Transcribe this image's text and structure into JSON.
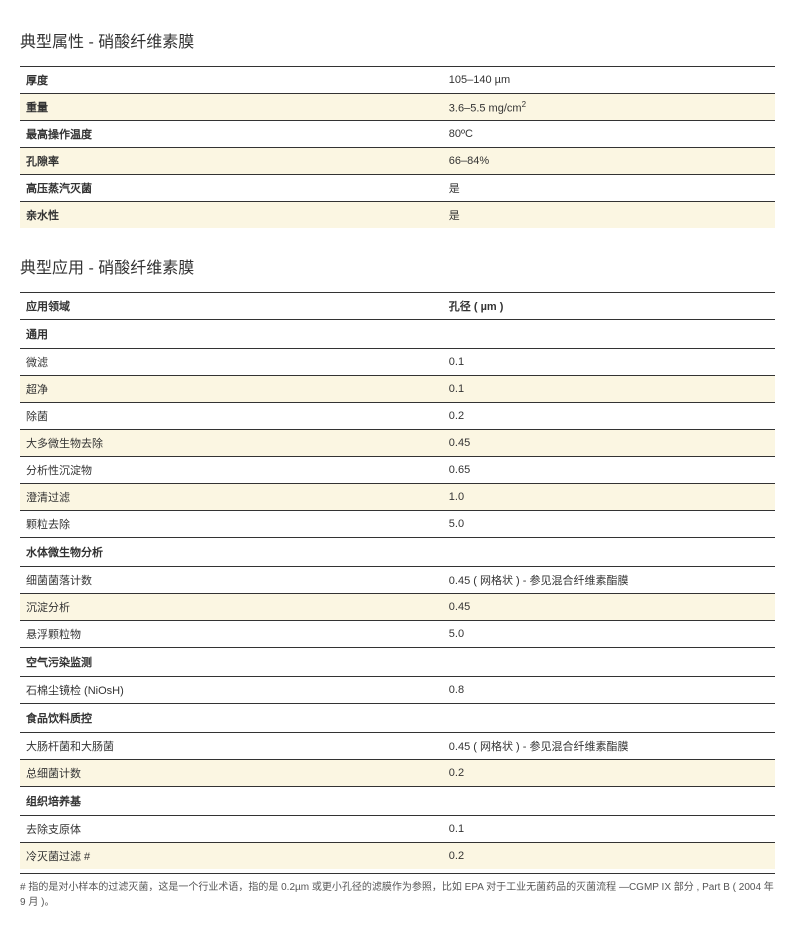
{
  "section1": {
    "title": "典型属性 - 硝酸纤维素膜",
    "rows": [
      {
        "label": "厚度",
        "value": "105–140 µm",
        "alt": false
      },
      {
        "label": "重量",
        "value": "3.6–5.5 mg/cm²",
        "alt": true
      },
      {
        "label": "最高操作温度",
        "value": "80ºC",
        "alt": false
      },
      {
        "label": "孔隙率",
        "value": "66–84%",
        "alt": true
      },
      {
        "label": "高压蒸汽灭菌",
        "value": "是",
        "alt": false
      },
      {
        "label": "亲水性",
        "value": "是",
        "alt": true
      }
    ]
  },
  "section2": {
    "title": "典型应用 - 硝酸纤维素膜",
    "header": {
      "col1": "应用领域",
      "col2": "孔径 ( µm )"
    },
    "groups": [
      {
        "name": "通用",
        "rows": [
          {
            "label": "微滤",
            "value": "0.1",
            "alt": false
          },
          {
            "label": "超净",
            "value": "0.1",
            "alt": true
          },
          {
            "label": "除菌",
            "value": "0.2",
            "alt": false
          },
          {
            "label": "大多微生物去除",
            "value": "0.45",
            "alt": true
          },
          {
            "label": "分析性沉淀物",
            "value": "0.65",
            "alt": false
          },
          {
            "label": "澄清过滤",
            "value": "1.0",
            "alt": true
          },
          {
            "label": "颗粒去除",
            "value": "5.0",
            "alt": false
          }
        ]
      },
      {
        "name": "水体微生物分析",
        "rows": [
          {
            "label": "细菌菌落计数",
            "value": "0.45 ( 网格状 ) - 参见混合纤维素酯膜",
            "alt": false
          },
          {
            "label": "沉淀分析",
            "value": "0.45",
            "alt": true
          },
          {
            "label": "悬浮颗粒物",
            "value": "5.0",
            "alt": false
          }
        ]
      },
      {
        "name": "空气污染监测",
        "rows": [
          {
            "label": "石棉尘镜检 (NiOsH)",
            "value": "0.8",
            "alt": false
          }
        ]
      },
      {
        "name": "食品饮料质控",
        "rows": [
          {
            "label": "大肠杆菌和大肠菌",
            "value": "0.45 ( 网格状 ) - 参见混合纤维素酯膜",
            "alt": false
          },
          {
            "label": "总细菌计数",
            "value": "0.2",
            "alt": true
          }
        ]
      },
      {
        "name": "组织培养基",
        "rows": [
          {
            "label": "去除支原体",
            "value": "0.1",
            "alt": false
          },
          {
            "label": "冷灭菌过滤 #",
            "value": "0.2",
            "alt": true
          }
        ]
      }
    ]
  },
  "footnote": "# 指的是对小样本的过滤灭菌，这是一个行业术语，指的是 0.2µm 或更小孔径的滤膜作为参照，比如 EPA 对于工业无菌药品的灭菌流程 —CGMP IX 部分 , Part B ( 2004 年 9 月 )。",
  "colors": {
    "alt_bg": "#fbf6e2",
    "border": "#333333",
    "text": "#333333",
    "footnote_text": "#555555",
    "bg": "#ffffff"
  }
}
